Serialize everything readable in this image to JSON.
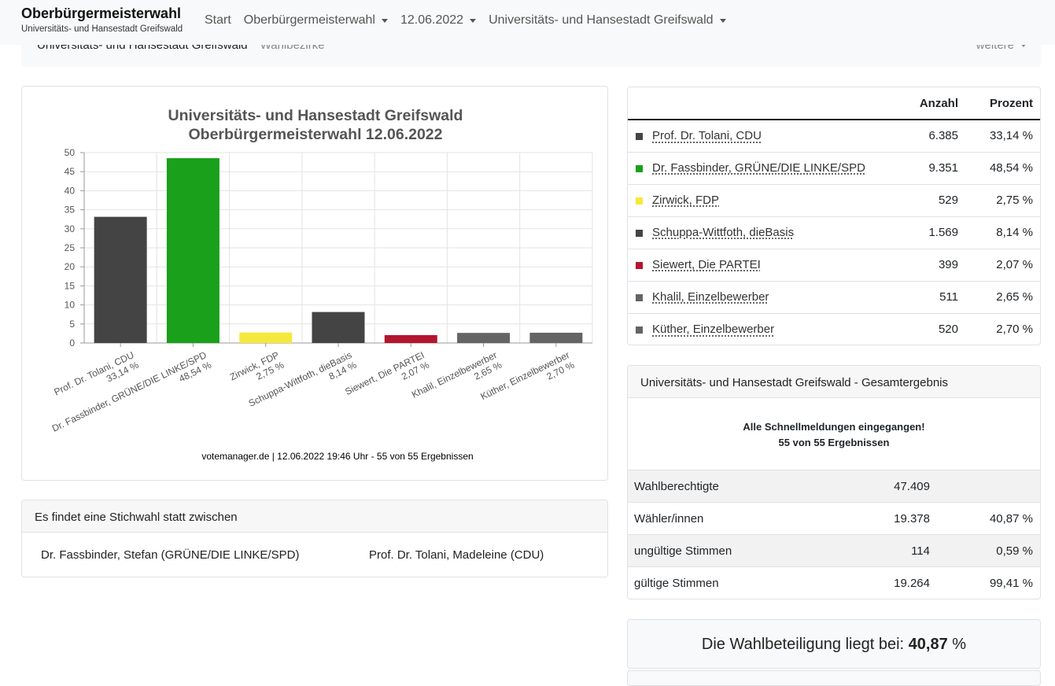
{
  "navbar": {
    "brand_title": "Oberbürgermeisterwahl",
    "brand_subtitle": "Universitäts- und Hansestadt Greifswald",
    "items": [
      {
        "label": "Start",
        "dropdown": false
      },
      {
        "label": "Oberbürgermeisterwahl",
        "dropdown": true
      },
      {
        "label": "12.06.2022",
        "dropdown": true
      },
      {
        "label": "Universitäts- und Hansestadt Greifswald",
        "dropdown": true
      }
    ]
  },
  "subnav": {
    "active": "Universitäts- und Hansestadt Greifswald",
    "link": "Wahlbezirke",
    "more": "weitere"
  },
  "chart_data": {
    "type": "bar",
    "title": "Universitäts- und Hansestadt Greifswald",
    "subtitle": "Oberbürgermeisterwahl 12.06.2022",
    "categories": [
      "Prof. Dr. Tolani, CDU",
      "Dr. Fassbinder, GRÜNE/DIE LINKE/SPD",
      "Zirwick, FDP",
      "Schuppa-Wittfoth, dieBasis",
      "Siewert, Die PARTEI",
      "Khalil, Einzelbewerber",
      "Küther, Einzelbewerber"
    ],
    "labels": [
      "33,14 %",
      "48,54 %",
      "2,75 %",
      "8,14 %",
      "2,07 %",
      "2,65 %",
      "2,70 %"
    ],
    "values": [
      33.14,
      48.54,
      2.75,
      8.14,
      2.07,
      2.65,
      2.7
    ],
    "colors": [
      "#444444",
      "#1aa01a",
      "#f5e83c",
      "#444444",
      "#b3162e",
      "#646464",
      "#646464"
    ],
    "ylim": [
      0,
      50
    ],
    "yticks": [
      0,
      5,
      10,
      15,
      20,
      25,
      30,
      35,
      40,
      45,
      50
    ],
    "grid": true,
    "footer": "votemanager.de | 12.06.2022 19:46 Uhr - 55 von 55 Ergebnissen"
  },
  "results": {
    "headers": {
      "count": "Anzahl",
      "percent": "Prozent"
    },
    "rows": [
      {
        "name": "Prof. Dr. Tolani, CDU",
        "count": "6.385",
        "percent": "33,14 %",
        "color": "#444444"
      },
      {
        "name": "Dr. Fassbinder, GRÜNE/DIE LINKE/SPD",
        "count": "9.351",
        "percent": "48,54 %",
        "color": "#1aa01a"
      },
      {
        "name": "Zirwick, FDP",
        "count": "529",
        "percent": "2,75 %",
        "color": "#f5e83c"
      },
      {
        "name": "Schuppa-Wittfoth, dieBasis",
        "count": "1.569",
        "percent": "8,14 %",
        "color": "#444444"
      },
      {
        "name": "Siewert, Die PARTEI",
        "count": "399",
        "percent": "2,07 %",
        "color": "#b3162e"
      },
      {
        "name": "Khalil, Einzelbewerber",
        "count": "511",
        "percent": "2,65 %",
        "color": "#646464"
      },
      {
        "name": "Küther, Einzelbewerber",
        "count": "520",
        "percent": "2,70 %",
        "color": "#646464"
      }
    ]
  },
  "summary": {
    "header": "Universitäts- und Hansestadt Greifswald - Gesamtergebnis",
    "message_line1": "Alle Schnellmeldungen eingegangen!",
    "message_line2": "55 von 55 Ergebnissen",
    "stats": [
      {
        "label": "Wahlberechtigte",
        "value": "47.409",
        "percent": ""
      },
      {
        "label": "Wähler/innen",
        "value": "19.378",
        "percent": "40,87 %"
      },
      {
        "label": "ungültige Stimmen",
        "value": "114",
        "percent": "0,59 %"
      },
      {
        "label": "gültige Stimmen",
        "value": "19.264",
        "percent": "99,41 %"
      }
    ]
  },
  "turnout": {
    "label": "Die Wahlbeteiligung liegt bei:",
    "value": "40,87",
    "unit": "%"
  },
  "runoff": {
    "header": "Es findet eine Stichwahl statt zwischen",
    "candidate1": "Dr. Fassbinder, Stefan (GRÜNE/DIE LINKE/SPD)",
    "candidate2": "Prof. Dr. Tolani, Madeleine (CDU)"
  }
}
